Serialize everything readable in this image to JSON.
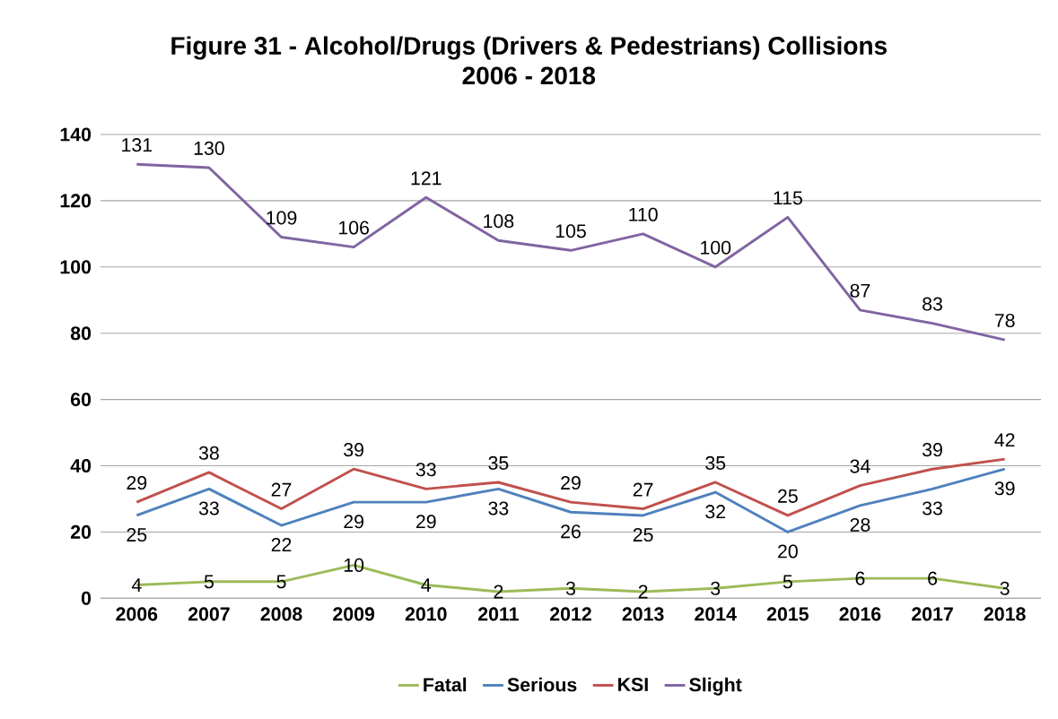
{
  "chart_data": {
    "type": "line",
    "title": "Figure 31 - Alcohol/Drugs (Drivers & Pedestrians) Collisions",
    "subtitle": "2006 - 2018",
    "categories": [
      "2006",
      "2007",
      "2008",
      "2009",
      "2010",
      "2011",
      "2012",
      "2013",
      "2014",
      "2015",
      "2016",
      "2017",
      "2018"
    ],
    "series": [
      {
        "name": "Fatal",
        "color": "#9bbb59",
        "values": [
          4,
          5,
          5,
          10,
          4,
          2,
          3,
          2,
          3,
          5,
          6,
          6,
          3
        ]
      },
      {
        "name": "Serious",
        "color": "#4f81bd",
        "values": [
          25,
          33,
          22,
          29,
          29,
          33,
          26,
          25,
          32,
          20,
          28,
          33,
          39
        ]
      },
      {
        "name": "KSI",
        "color": "#c0504d",
        "values": [
          29,
          38,
          27,
          39,
          33,
          35,
          29,
          27,
          35,
          25,
          34,
          39,
          42
        ]
      },
      {
        "name": "Slight",
        "color": "#8064a2",
        "values": [
          131,
          130,
          109,
          106,
          121,
          108,
          105,
          110,
          100,
          115,
          87,
          83,
          78
        ]
      }
    ],
    "ylim": [
      0,
      140
    ],
    "yticks": [
      0,
      20,
      40,
      60,
      80,
      100,
      120,
      140
    ],
    "grid": "y",
    "legend": "bottom",
    "data_labels": true,
    "marker": "none",
    "line_style": "solid"
  }
}
